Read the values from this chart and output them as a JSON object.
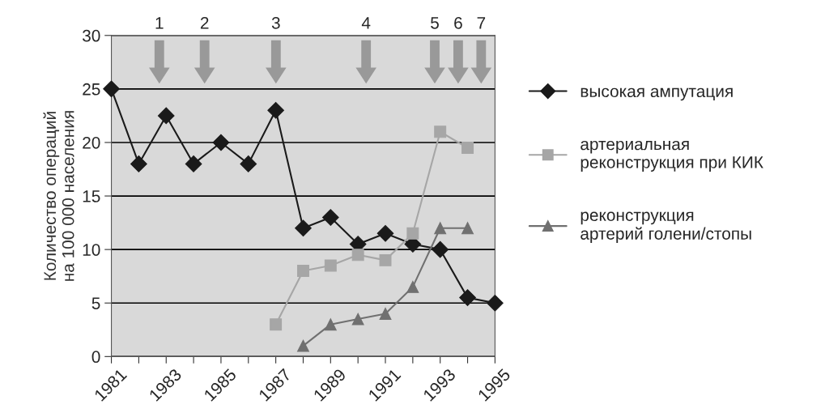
{
  "chart_data": {
    "type": "line",
    "ylabel": "Количество операций\nна 100 000 населения",
    "x": [
      1981,
      1982,
      1983,
      1984,
      1985,
      1986,
      1987,
      1988,
      1989,
      1990,
      1991,
      1992,
      1993,
      1994,
      1995
    ],
    "series": [
      {
        "name": "высокая ампутация",
        "color": "#1a1a1a",
        "marker": "diamond",
        "values": [
          25,
          18,
          22.5,
          18,
          20,
          18,
          23,
          12,
          13,
          10.5,
          11.5,
          10.5,
          10,
          5.5,
          5
        ]
      },
      {
        "name": "артериальная\nреконструкция при КИК",
        "color": "#a6a6a6",
        "marker": "square",
        "values": [
          null,
          null,
          null,
          null,
          null,
          null,
          3,
          8,
          8.5,
          9.5,
          9,
          11.5,
          21,
          19.5,
          null
        ]
      },
      {
        "name": "реконструкция\nартерий голени/стопы",
        "color": "#707070",
        "marker": "triangle",
        "values": [
          null,
          null,
          null,
          null,
          null,
          null,
          null,
          1,
          3,
          3.5,
          4,
          6.5,
          12,
          12,
          null
        ]
      }
    ],
    "xlim": [
      1981,
      1995
    ],
    "xticks": [
      1981,
      {
        "value": 1982,
        "label": null
      },
      1983,
      {
        "value": 1984,
        "label": null
      },
      1985,
      {
        "value": 1986,
        "label": null
      },
      1987,
      {
        "value": 1988,
        "label": null
      },
      1989,
      {
        "value": 1990,
        "label": null
      },
      1991,
      {
        "value": 1992,
        "label": null
      },
      1993,
      {
        "value": 1994,
        "label": null
      },
      1995
    ],
    "ylim": [
      0,
      30
    ],
    "yticks": [
      0,
      5,
      10,
      15,
      20,
      25,
      30
    ],
    "grid": "y",
    "legend": "right",
    "annotations": [
      "1",
      "2",
      "3",
      "4",
      "5",
      "6",
      "7"
    ]
  }
}
